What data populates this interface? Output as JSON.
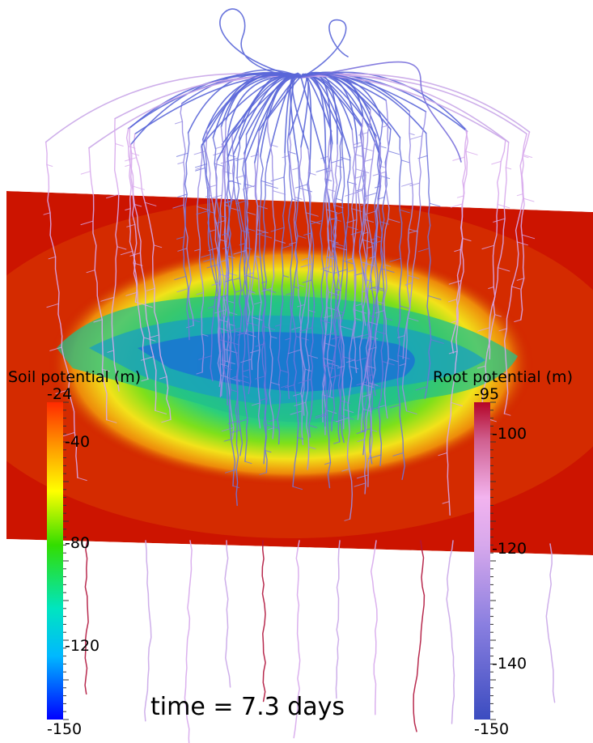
{
  "scene": {
    "soil_slice_colors": [
      "#cc1400",
      "#e65c00",
      "#ffd000",
      "#33cc22",
      "#1aa6b0",
      "#1a6ad9"
    ],
    "root_colors": [
      "#5566dd",
      "#7a6fd9",
      "#c9a6e8",
      "#e6b3e6",
      "#b0133b"
    ]
  },
  "soil_legend": {
    "title": "Soil potential (m)",
    "ticks": [
      "-24",
      "-40",
      "-80",
      "-120",
      "-150"
    ],
    "tick_values": [
      -24,
      -40,
      -80,
      -120,
      -150
    ],
    "range": [
      -150,
      -24
    ],
    "colormap": [
      "#0000ff",
      "#00b8ff",
      "#00e5c0",
      "#33dd00",
      "#ffff00",
      "#ff9900",
      "#ff2a00"
    ]
  },
  "root_legend": {
    "title": "Root potential (m)",
    "ticks": [
      "-95",
      "-100",
      "-120",
      "-140",
      "-150"
    ],
    "tick_values": [
      -95,
      -100,
      -120,
      -140,
      -150
    ],
    "range": [
      -150,
      -95
    ],
    "colormap": [
      "#3b4cc0",
      "#8a7fe0",
      "#d7a8ec",
      "#f2b3ee",
      "#d06090",
      "#b40426"
    ]
  },
  "time_label": "time = 7.3 days"
}
